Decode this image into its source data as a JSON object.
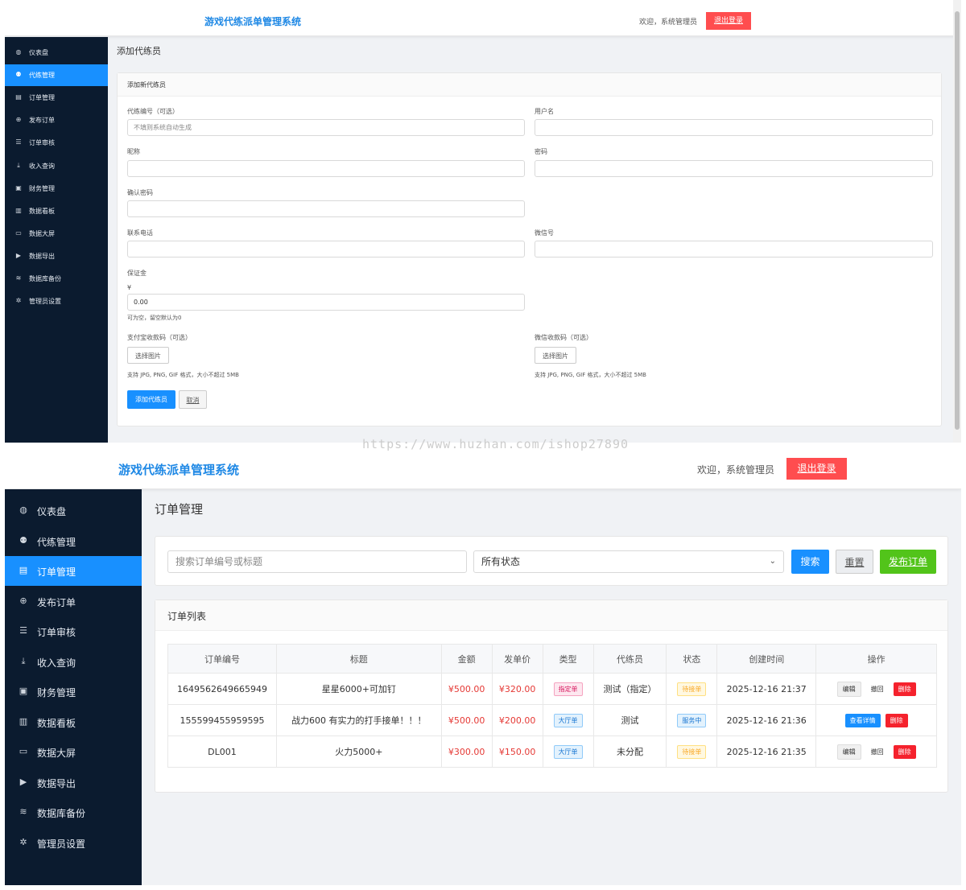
{
  "app": {
    "brand": "游戏代练派单管理系统",
    "welcome": "欢迎，系统管理员",
    "logout": "退出登录"
  },
  "nav": [
    {
      "label": "仪表盘",
      "icon": "dashboard-icon",
      "glyph": "◍"
    },
    {
      "label": "代练管理",
      "icon": "users-icon",
      "glyph": "⚉"
    },
    {
      "label": "订单管理",
      "icon": "clipboard-icon",
      "glyph": "▤"
    },
    {
      "label": "发布订单",
      "icon": "plus-circle-icon",
      "glyph": "⊕"
    },
    {
      "label": "订单审核",
      "icon": "list-check-icon",
      "glyph": "☰"
    },
    {
      "label": "收入查询",
      "icon": "hand-coins-icon",
      "glyph": "⤓"
    },
    {
      "label": "财务管理",
      "icon": "money-icon",
      "glyph": "▣"
    },
    {
      "label": "数据看板",
      "icon": "chart-icon",
      "glyph": "▥"
    },
    {
      "label": "数据大屏",
      "icon": "monitor-icon",
      "glyph": "▭"
    },
    {
      "label": "数据导出",
      "icon": "file-export-icon",
      "glyph": "▶"
    },
    {
      "label": "数据库备份",
      "icon": "database-icon",
      "glyph": "≋"
    },
    {
      "label": "管理员设置",
      "icon": "gear-icon",
      "glyph": "✲"
    }
  ],
  "screen1": {
    "active_nav": 1,
    "page_title": "添加代练员",
    "card_title": "添加新代练员",
    "form": {
      "id_label": "代练编号（可选）",
      "id_placeholder": "不填则系统自动生成",
      "username_label": "用户名",
      "nickname_label": "昵称",
      "password_label": "密码",
      "confirm_label": "确认密码",
      "phone_label": "联系电话",
      "wechat_label": "微信号",
      "deposit_label": "保证金",
      "currency": "¥",
      "deposit_value": "0.00",
      "deposit_hint": "可为空，留空默认为0",
      "alipay_label": "支付宝收款码（可选）",
      "wechat_qr_label": "微信收款码（可选）",
      "choose_image": "选择图片",
      "file_hint": "支持 JPG, PNG, GIF 格式，大小不超过 5MB",
      "submit": "添加代练员",
      "cancel": "取消"
    }
  },
  "screen2": {
    "active_nav": 2,
    "page_title": "订单管理",
    "search_placeholder": "搜索订单编号或标题",
    "status_select": "所有状态",
    "search_btn": "搜索",
    "reset_btn": "重置",
    "publish_btn": "发布订单",
    "list_title": "订单列表",
    "columns": [
      "订单编号",
      "标题",
      "金额",
      "发单价",
      "类型",
      "代练员",
      "状态",
      "创建时间",
      "操作"
    ],
    "rows": [
      {
        "id": "1649562649665949",
        "title": "星星6000+可加钉",
        "amount": "¥500.00",
        "price": "¥320.00",
        "type": "指定单",
        "type_style": "pink",
        "worker": "测试（指定）",
        "status": "待接单",
        "status_style": "yellow",
        "created": "2025-12-16 21:37",
        "actions": [
          "编辑",
          "撤回",
          "删除"
        ]
      },
      {
        "id": "155599455959595",
        "title": "战力600 有实力的打手接单！！！",
        "amount": "¥500.00",
        "price": "¥200.00",
        "type": "大厅单",
        "type_style": "blue",
        "worker": "测试",
        "status": "服务中",
        "status_style": "blue",
        "created": "2025-12-16 21:36",
        "actions": [
          "查看详情",
          "删除"
        ]
      },
      {
        "id": "DL001",
        "title": "火力5000+",
        "amount": "¥300.00",
        "price": "¥150.00",
        "type": "大厅单",
        "type_style": "blue",
        "worker": "未分配",
        "status": "待接单",
        "status_style": "yellow",
        "created": "2025-12-16 21:35",
        "actions": [
          "编辑",
          "撤回",
          "删除"
        ]
      }
    ]
  },
  "watermark": "https://www.huzhan.com/ishop27890",
  "colors": {
    "accent": "#1890ff",
    "sidebar": "#0b1b2f",
    "danger": "#ff4d4f",
    "success": "#52c41a"
  }
}
